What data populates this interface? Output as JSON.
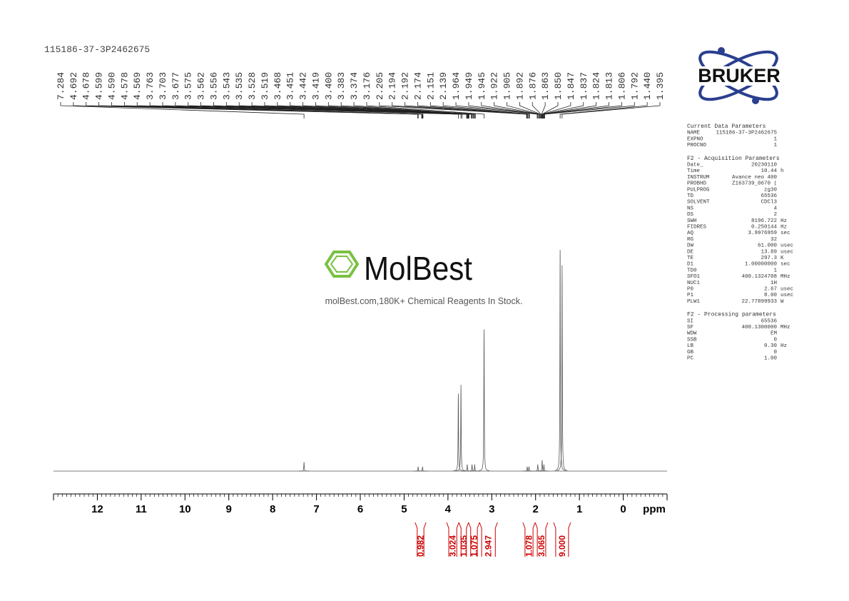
{
  "chart_data": {
    "type": "nmr",
    "title": "115186-37-3P2462675",
    "x_label": "ppm",
    "xlim": [
      13,
      -1
    ],
    "xticks": [
      12,
      11,
      10,
      9,
      8,
      7,
      6,
      5,
      4,
      3,
      2,
      1,
      0
    ],
    "minor_tick_step": 0.1,
    "ylim": [
      0,
      100
    ],
    "line_color": "#555555",
    "integral_color": "#cc0000",
    "peak_labels": [
      "7.284",
      "4.692",
      "4.678",
      "4.599",
      "4.590",
      "4.578",
      "4.569",
      "3.763",
      "3.703",
      "3.677",
      "3.575",
      "3.562",
      "3.556",
      "3.543",
      "3.535",
      "3.528",
      "3.519",
      "3.468",
      "3.451",
      "3.442",
      "3.419",
      "3.400",
      "3.383",
      "3.374",
      "3.176",
      "2.205",
      "2.194",
      "2.192",
      "2.174",
      "2.151",
      "2.139",
      "1.964",
      "1.949",
      "1.945",
      "1.922",
      "1.905",
      "1.892",
      "1.876",
      "1.863",
      "1.850",
      "1.847",
      "1.837",
      "1.824",
      "1.813",
      "1.806",
      "1.792",
      "1.440",
      "1.395"
    ],
    "signals": [
      {
        "ppm": 7.284,
        "height": 4
      },
      {
        "ppm": 4.68,
        "height": 2
      },
      {
        "ppm": 4.58,
        "height": 2
      },
      {
        "ppm": 3.763,
        "height": 35
      },
      {
        "ppm": 3.703,
        "height": 39
      },
      {
        "ppm": 3.56,
        "height": 3
      },
      {
        "ppm": 3.45,
        "height": 3
      },
      {
        "ppm": 3.39,
        "height": 3
      },
      {
        "ppm": 3.176,
        "height": 64
      },
      {
        "ppm": 2.19,
        "height": 2
      },
      {
        "ppm": 2.15,
        "height": 2
      },
      {
        "ppm": 1.95,
        "height": 3
      },
      {
        "ppm": 1.85,
        "height": 5
      },
      {
        "ppm": 1.81,
        "height": 3
      },
      {
        "ppm": 1.44,
        "height": 100
      },
      {
        "ppm": 1.395,
        "height": 93
      }
    ],
    "integrals": [
      {
        "label": "0.982",
        "from": 4.75,
        "to": 4.5
      },
      {
        "label": "3.024",
        "from": 4.03,
        "to": 3.75
      },
      {
        "label": "1.035",
        "from": 3.75,
        "to": 3.53
      },
      {
        "label": "1.075",
        "from": 3.53,
        "to": 3.28
      },
      {
        "label": "2.947",
        "from": 3.28,
        "to": 2.87
      },
      {
        "label": "1.078",
        "from": 2.29,
        "to": 2.01
      },
      {
        "label": "3.065",
        "from": 2.01,
        "to": 1.72
      },
      {
        "label": "9.000",
        "from": 1.59,
        "to": 1.2
      }
    ]
  },
  "logo": {
    "text": "BRUKER"
  },
  "watermark": {
    "brand": "MolBest",
    "tagline": "molBest.com,180K+ Chemical Reagents In Stock."
  },
  "parameters": [
    {
      "heading": "Current Data Parameters",
      "rows": [
        [
          "NAME",
          "115186-37-3P2462675",
          ""
        ],
        [
          "EXPNO",
          "1",
          ""
        ],
        [
          "PROCNO",
          "1",
          ""
        ]
      ]
    },
    {
      "heading": "F2 - Acquisition Parameters",
      "rows": [
        [
          "Date_",
          "20230110",
          ""
        ],
        [
          "Time",
          "10.44",
          "h"
        ],
        [
          "INSTRUM",
          "Avance neo 400",
          ""
        ],
        [
          "PROBHD",
          "Z163739_0670 (",
          ""
        ],
        [
          "PULPROG",
          "zg30",
          ""
        ],
        [
          "TD",
          "65536",
          ""
        ],
        [
          "SOLVENT",
          "CDCl3",
          ""
        ],
        [
          "NS",
          "4",
          ""
        ],
        [
          "DS",
          "2",
          ""
        ],
        [
          "SWH",
          "8196.722",
          "Hz"
        ],
        [
          "FIDRES",
          "0.250144",
          "Hz"
        ],
        [
          "AQ",
          "3.9976959",
          "sec"
        ],
        [
          "RG",
          "32",
          ""
        ],
        [
          "DW",
          "61.000",
          "usec"
        ],
        [
          "DE",
          "13.89",
          "usec"
        ],
        [
          "TE",
          "297.3",
          "K"
        ],
        [
          "D1",
          "1.00000000",
          "sec"
        ],
        [
          "TD0",
          "1",
          ""
        ],
        [
          "SFO1",
          "400.1324708",
          "MHz"
        ],
        [
          "NUC1",
          "1H",
          ""
        ],
        [
          "P0",
          "2.67",
          "usec"
        ],
        [
          "P1",
          "8.00",
          "usec"
        ],
        [
          "PLW1",
          "22.77899933",
          "W"
        ]
      ]
    },
    {
      "heading": "F2 - Processing parameters",
      "rows": [
        [
          "SI",
          "65536",
          ""
        ],
        [
          "SF",
          "400.1300000",
          "MHz"
        ],
        [
          "WDW",
          "EM",
          ""
        ],
        [
          "SSB",
          "0",
          ""
        ],
        [
          "LB",
          "0.30",
          "Hz"
        ],
        [
          "GB",
          "0",
          ""
        ],
        [
          "PC",
          "1.00",
          ""
        ]
      ]
    }
  ]
}
